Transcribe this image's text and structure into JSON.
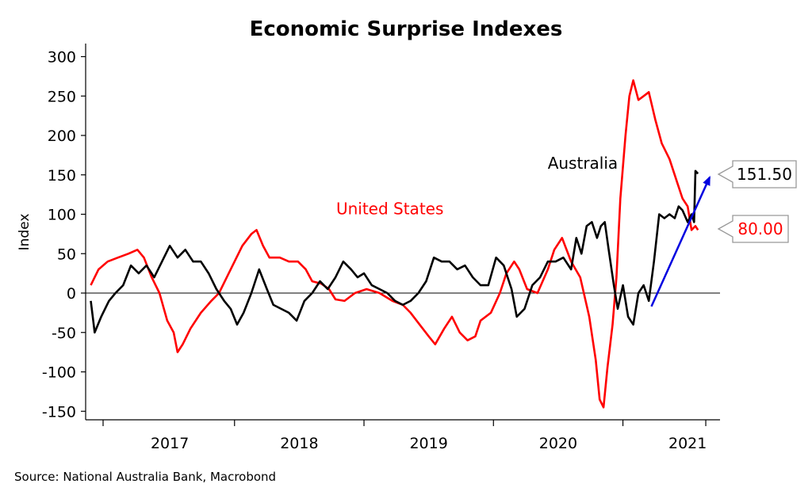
{
  "chart_data": {
    "type": "line",
    "title": "Economic Surprise Indexes",
    "ylabel": "Index",
    "xlabel": "",
    "source": "Source: National Australia Bank, Macrobond",
    "ylim": [
      -160,
      310
    ],
    "xlim": [
      2016.35,
      2021.25
    ],
    "y_ticks": [
      300,
      250,
      200,
      150,
      100,
      50,
      0,
      -50,
      -100,
      -150
    ],
    "x_year_labels": [
      {
        "label": "2017",
        "x": 2017.0
      },
      {
        "label": "2018",
        "x": 2018.0
      },
      {
        "label": "2019",
        "x": 2019.0
      },
      {
        "label": "2020",
        "x": 2020.0
      },
      {
        "label": "2021",
        "x": 2021.0
      }
    ],
    "x_year_boundaries": [
      2017.5,
      2018.5,
      2019.5,
      2020.5
    ],
    "zero_line": true,
    "grid": false,
    "series": [
      {
        "name": "United States",
        "color": "#ff0000",
        "points": [
          [
            2016.39,
            10
          ],
          [
            2016.45,
            30
          ],
          [
            2016.52,
            40
          ],
          [
            2016.6,
            45
          ],
          [
            2016.68,
            50
          ],
          [
            2016.75,
            55
          ],
          [
            2016.8,
            45
          ],
          [
            2016.86,
            20
          ],
          [
            2016.92,
            0
          ],
          [
            2016.98,
            -35
          ],
          [
            2017.03,
            -50
          ],
          [
            2017.06,
            -75
          ],
          [
            2017.1,
            -65
          ],
          [
            2017.16,
            -45
          ],
          [
            2017.24,
            -25
          ],
          [
            2017.32,
            -10
          ],
          [
            2017.38,
            0
          ],
          [
            2017.44,
            20
          ],
          [
            2017.5,
            40
          ],
          [
            2017.56,
            60
          ],
          [
            2017.63,
            75
          ],
          [
            2017.67,
            80
          ],
          [
            2017.72,
            60
          ],
          [
            2017.77,
            45
          ],
          [
            2017.85,
            45
          ],
          [
            2017.92,
            40
          ],
          [
            2017.99,
            40
          ],
          [
            2018.05,
            30
          ],
          [
            2018.1,
            15
          ],
          [
            2018.17,
            12
          ],
          [
            2018.23,
            5
          ],
          [
            2018.28,
            -8
          ],
          [
            2018.35,
            -10
          ],
          [
            2018.43,
            0
          ],
          [
            2018.52,
            5
          ],
          [
            2018.62,
            0
          ],
          [
            2018.72,
            -10
          ],
          [
            2018.8,
            -15
          ],
          [
            2018.86,
            -25
          ],
          [
            2018.93,
            -40
          ],
          [
            2019.0,
            -55
          ],
          [
            2019.05,
            -65
          ],
          [
            2019.12,
            -45
          ],
          [
            2019.18,
            -30
          ],
          [
            2019.24,
            -50
          ],
          [
            2019.3,
            -60
          ],
          [
            2019.36,
            -55
          ],
          [
            2019.4,
            -35
          ],
          [
            2019.48,
            -25
          ],
          [
            2019.55,
            0
          ],
          [
            2019.6,
            25
          ],
          [
            2019.66,
            40
          ],
          [
            2019.7,
            30
          ],
          [
            2019.76,
            5
          ],
          [
            2019.84,
            0
          ],
          [
            2019.92,
            30
          ],
          [
            2019.97,
            55
          ],
          [
            2020.03,
            70
          ],
          [
            2020.1,
            40
          ],
          [
            2020.17,
            20
          ],
          [
            2020.24,
            -30
          ],
          [
            2020.29,
            -85
          ],
          [
            2020.32,
            -135
          ],
          [
            2020.35,
            -145
          ],
          [
            2020.38,
            -95
          ],
          [
            2020.42,
            -40
          ],
          [
            2020.45,
            20
          ],
          [
            2020.48,
            120
          ],
          [
            2020.52,
            200
          ],
          [
            2020.55,
            250
          ],
          [
            2020.58,
            270
          ],
          [
            2020.62,
            245
          ],
          [
            2020.66,
            250
          ],
          [
            2020.7,
            255
          ],
          [
            2020.75,
            220
          ],
          [
            2020.8,
            190
          ],
          [
            2020.86,
            170
          ],
          [
            2020.92,
            140
          ],
          [
            2020.96,
            120
          ],
          [
            2021.0,
            110
          ],
          [
            2021.03,
            80
          ],
          [
            2021.06,
            85
          ],
          [
            2021.08,
            80
          ]
        ]
      },
      {
        "name": "Australia",
        "color": "#000000",
        "points": [
          [
            2016.39,
            -10
          ],
          [
            2016.42,
            -50
          ],
          [
            2016.47,
            -30
          ],
          [
            2016.53,
            -10
          ],
          [
            2016.58,
            0
          ],
          [
            2016.64,
            10
          ],
          [
            2016.7,
            35
          ],
          [
            2016.76,
            25
          ],
          [
            2016.82,
            35
          ],
          [
            2016.88,
            20
          ],
          [
            2016.94,
            40
          ],
          [
            2017.0,
            60
          ],
          [
            2017.06,
            45
          ],
          [
            2017.12,
            55
          ],
          [
            2017.18,
            40
          ],
          [
            2017.24,
            40
          ],
          [
            2017.3,
            25
          ],
          [
            2017.36,
            5
          ],
          [
            2017.42,
            -10
          ],
          [
            2017.47,
            -20
          ],
          [
            2017.52,
            -40
          ],
          [
            2017.57,
            -25
          ],
          [
            2017.63,
            0
          ],
          [
            2017.69,
            30
          ],
          [
            2017.75,
            5
          ],
          [
            2017.8,
            -15
          ],
          [
            2017.86,
            -20
          ],
          [
            2017.92,
            -25
          ],
          [
            2017.98,
            -35
          ],
          [
            2018.04,
            -10
          ],
          [
            2018.1,
            0
          ],
          [
            2018.16,
            15
          ],
          [
            2018.22,
            5
          ],
          [
            2018.28,
            20
          ],
          [
            2018.34,
            40
          ],
          [
            2018.4,
            30
          ],
          [
            2018.45,
            20
          ],
          [
            2018.5,
            25
          ],
          [
            2018.56,
            10
          ],
          [
            2018.62,
            5
          ],
          [
            2018.68,
            0
          ],
          [
            2018.74,
            -10
          ],
          [
            2018.8,
            -15
          ],
          [
            2018.86,
            -10
          ],
          [
            2018.92,
            0
          ],
          [
            2018.98,
            15
          ],
          [
            2019.04,
            45
          ],
          [
            2019.1,
            40
          ],
          [
            2019.16,
            40
          ],
          [
            2019.22,
            30
          ],
          [
            2019.28,
            35
          ],
          [
            2019.34,
            20
          ],
          [
            2019.4,
            10
          ],
          [
            2019.46,
            10
          ],
          [
            2019.52,
            45
          ],
          [
            2019.58,
            35
          ],
          [
            2019.64,
            5
          ],
          [
            2019.68,
            -30
          ],
          [
            2019.74,
            -20
          ],
          [
            2019.8,
            10
          ],
          [
            2019.86,
            20
          ],
          [
            2019.92,
            40
          ],
          [
            2019.98,
            40
          ],
          [
            2020.04,
            45
          ],
          [
            2020.1,
            30
          ],
          [
            2020.14,
            70
          ],
          [
            2020.18,
            50
          ],
          [
            2020.22,
            85
          ],
          [
            2020.26,
            90
          ],
          [
            2020.3,
            70
          ],
          [
            2020.33,
            85
          ],
          [
            2020.36,
            90
          ],
          [
            2020.39,
            55
          ],
          [
            2020.43,
            10
          ],
          [
            2020.46,
            -20
          ],
          [
            2020.5,
            10
          ],
          [
            2020.54,
            -30
          ],
          [
            2020.58,
            -40
          ],
          [
            2020.62,
            0
          ],
          [
            2020.66,
            10
          ],
          [
            2020.7,
            -10
          ],
          [
            2020.74,
            40
          ],
          [
            2020.78,
            100
          ],
          [
            2020.82,
            95
          ],
          [
            2020.86,
            100
          ],
          [
            2020.9,
            95
          ],
          [
            2020.93,
            110
          ],
          [
            2020.96,
            105
          ],
          [
            2021.0,
            90
          ],
          [
            2021.03,
            100
          ],
          [
            2021.05,
            90
          ],
          [
            2021.06,
            155
          ],
          [
            2021.08,
            151.5
          ]
        ]
      }
    ],
    "series_labels": [
      {
        "text": "United States",
        "color": "#ff0000",
        "x": 2018.7,
        "y": 100
      },
      {
        "text": "Australia",
        "color": "#000000",
        "x": 2020.19,
        "y": 158
      }
    ],
    "callouts": [
      {
        "text": "151.50",
        "color": "#000000",
        "border": "#999999"
      },
      {
        "text": "80.00",
        "color": "#ff0000",
        "border": "#999999"
      }
    ],
    "trend_arrow": {
      "color": "#0000e0",
      "from": [
        2020.72,
        -17
      ],
      "to": [
        2021.17,
        147
      ]
    }
  }
}
